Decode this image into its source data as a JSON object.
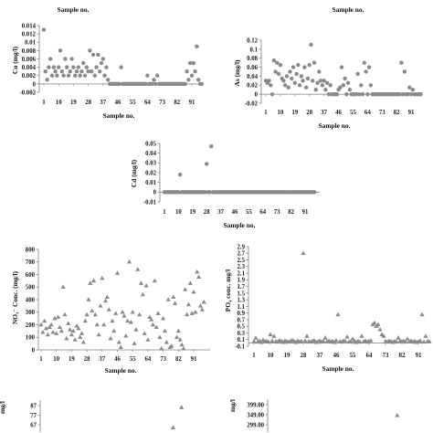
{
  "style": {
    "marker_color": "#8a8a8a",
    "axis_color": "#808080"
  },
  "top_labels": [
    "Sample no.",
    "Sample no."
  ],
  "chart_data": [
    {
      "type": "scatter",
      "marker": "circle",
      "ylabel": "Cu (mg/l)",
      "xlabel": "Sample no.",
      "x_ticks": [
        1,
        10,
        19,
        28,
        37,
        46,
        55,
        64,
        73,
        82,
        91
      ],
      "y_ticks": [
        "0.014",
        "0.012",
        "0.01",
        "0.008",
        "0.006",
        "0.004",
        "0.002",
        "0",
        "-0.002"
      ],
      "ylim": [
        -0.002,
        0.014
      ],
      "values": [
        0.013,
        0.003,
        0.001,
        0.004,
        0.006,
        0.002,
        0.004,
        0.003,
        0.002,
        0.004,
        0.008,
        0.003,
        0.002,
        0.006,
        0.004,
        0.002,
        0.003,
        0.006,
        0.004,
        0.002,
        0.003,
        0.004,
        0.002,
        0.003,
        0.005,
        0.002,
        0.004,
        0.003,
        0.008,
        0.003,
        0.007,
        0.002,
        0.004,
        0.007,
        0.003,
        0.005,
        0.006,
        0.002,
        0.004,
        0.001,
        0,
        0,
        0,
        0,
        0,
        0,
        0,
        0.004,
        0,
        0,
        0,
        0,
        0,
        0,
        0,
        0,
        0,
        0,
        0,
        0,
        0,
        0,
        0,
        0.002,
        0,
        0,
        0,
        0.001,
        0,
        0.002,
        0,
        0,
        0,
        0,
        0,
        0,
        0,
        0,
        0,
        0,
        0,
        0,
        0,
        0,
        0,
        0,
        0,
        0.003,
        0.001,
        0.005,
        0.002,
        0.005,
        0.003,
        0.009,
        0.001,
        0,
        0
      ]
    },
    {
      "type": "scatter",
      "marker": "circle",
      "ylabel": "As (mg/l)",
      "xlabel": "Sample no.",
      "x_ticks": [
        1,
        10,
        19,
        28,
        37,
        46,
        55,
        64,
        73,
        82,
        91
      ],
      "y_ticks": [
        "0.12",
        "0.1",
        "0.08",
        "0.06",
        "0.04",
        "0.02",
        "0",
        "-0.02"
      ],
      "ylim": [
        -0.02,
        0.12
      ],
      "values": [
        0.03,
        0.025,
        0.03,
        0.02,
        0,
        0.075,
        0.05,
        0.07,
        0.045,
        0.065,
        0.035,
        0.03,
        0.02,
        0.04,
        0.015,
        0.05,
        0.035,
        0.06,
        0.025,
        0.045,
        0.065,
        0.02,
        0.04,
        0.03,
        0.06,
        0.015,
        0.035,
        0.065,
        0.11,
        0.03,
        0.07,
        0.01,
        0.025,
        0.05,
        0.03,
        0.02,
        0.03,
        0.01,
        0.025,
        0,
        0.02,
        0,
        0,
        0,
        0,
        0.01,
        0.015,
        0.06,
        0.02,
        0.035,
        0,
        0.025,
        0.01,
        0,
        0,
        0,
        0,
        0.045,
        0,
        0.02,
        0,
        0.07,
        0.05,
        0,
        0.06,
        0.02,
        0,
        0,
        0,
        0,
        0,
        0,
        0,
        0,
        0,
        0,
        0,
        0,
        0,
        0,
        0,
        0,
        0,
        0,
        0.07,
        0,
        0.05,
        0,
        0,
        0.015,
        0,
        0.01,
        0,
        0,
        0,
        0,
        0
      ]
    },
    {
      "type": "scatter",
      "marker": "circle",
      "ylabel": "Cd (mg/l)",
      "xlabel": "Sample no.",
      "x_ticks": [
        1,
        10,
        19,
        28,
        37,
        46,
        55,
        64,
        73,
        82,
        91
      ],
      "y_ticks": [
        "0.05",
        "0.04",
        "0.03",
        "0.02",
        "0.01",
        "0",
        "-0.01"
      ],
      "ylim": [
        -0.01,
        0.05
      ],
      "values": [
        0,
        0,
        0,
        0,
        0,
        0,
        0,
        0,
        0,
        0,
        0.018,
        0,
        0,
        0,
        0,
        0,
        0,
        0,
        0,
        0,
        0,
        0,
        0,
        0,
        0,
        0,
        0,
        0.029,
        0,
        0,
        0.047,
        0,
        0,
        0,
        0,
        0,
        0,
        0,
        0,
        0,
        0,
        0,
        0,
        0,
        0,
        0,
        0,
        0,
        0,
        0,
        0,
        0,
        0,
        0,
        0,
        0,
        0,
        0,
        0,
        0,
        0,
        0,
        0,
        0,
        0,
        0,
        0,
        0,
        0,
        0,
        0,
        0,
        0,
        0,
        0,
        0,
        0,
        0,
        0,
        0,
        0,
        0,
        0,
        0,
        0,
        0,
        0,
        0,
        0,
        0,
        0,
        0,
        0,
        0,
        0,
        0,
        0
      ]
    },
    {
      "type": "scatter",
      "marker": "triangle",
      "ylabel": "NO₃⁻ Conc. (mg/l)",
      "xlabel": "Sample no.",
      "x_ticks": [
        1,
        10,
        19,
        28,
        37,
        46,
        55,
        64,
        73,
        82,
        91
      ],
      "y_ticks": [
        "800",
        "700",
        "600",
        "500",
        "400",
        "300",
        "200",
        "100",
        "0"
      ],
      "ylim": [
        0,
        800
      ],
      "values": [
        200,
        140,
        230,
        170,
        120,
        180,
        200,
        140,
        250,
        130,
        260,
        180,
        150,
        500,
        280,
        90,
        210,
        160,
        120,
        150,
        80,
        190,
        170,
        100,
        130,
        60,
        230,
        280,
        400,
        530,
        310,
        550,
        280,
        200,
        120,
        350,
        570,
        200,
        390,
        420,
        320,
        90,
        230,
        150,
        290,
        610,
        60,
        20,
        300,
        270,
        110,
        230,
        700,
        220,
        300,
        50,
        160,
        640,
        280,
        530,
        440,
        130,
        510,
        80,
        260,
        240,
        200,
        550,
        180,
        290,
        100,
        10,
        250,
        150,
        60,
        400,
        20,
        30,
        420,
        370,
        100,
        150,
        80,
        40,
        10,
        480,
        280,
        360,
        530,
        290,
        460,
        300,
        620,
        580,
        350,
        320,
        380
      ]
    },
    {
      "type": "scatter",
      "marker": "triangle",
      "ylabel": "PO₄ conc. mg/l",
      "xlabel": "Sample no.",
      "x_ticks": [
        1,
        10,
        19,
        28,
        37,
        46,
        55,
        64,
        73,
        82,
        91
      ],
      "y_ticks": [
        "2.9",
        "2.7",
        "2.5",
        "2.3",
        "2.1",
        "1.9",
        "1.7",
        "1.5",
        "1.3",
        "1.1",
        "0.9",
        "0.7",
        "0.5",
        "0.3",
        "0.1",
        "-0.1"
      ],
      "ylim": [
        -0.1,
        2.9
      ],
      "values": [
        0.05,
        0.15,
        0.03,
        0.06,
        0.02,
        0.08,
        0.04,
        0.05,
        0.03,
        0.25,
        0.06,
        0.2,
        0.04,
        0.03,
        0.07,
        0.05,
        0.02,
        0.06,
        0.04,
        0.03,
        0.05,
        0.08,
        0.04,
        0.02,
        0.06,
        0.03,
        0.05,
        2.7,
        0.06,
        0.2,
        0.04,
        0.03,
        0.05,
        0.07,
        0.02,
        0.04,
        0.06,
        0.03,
        0.05,
        0.15,
        0.04,
        0.06,
        0.03,
        0.05,
        0.02,
        0.07,
        0.85,
        0.04,
        0.03,
        0.06,
        0.05,
        0.18,
        0.03,
        0.04,
        0.12,
        0.06,
        0.02,
        0.05,
        0.03,
        0.2,
        0.04,
        0.06,
        0.03,
        0.05,
        0.07,
        0.55,
        0.6,
        0.5,
        0.55,
        0.4,
        0.25,
        0.2,
        0.05,
        0.03,
        0.06,
        0.04,
        0.02,
        0.05,
        0.03,
        0.15,
        0.06,
        0.04,
        0.05,
        0.03,
        0.12,
        0.04,
        0.06,
        0.03,
        0.05,
        0.02,
        0.04,
        0.06,
        0.85,
        0.03,
        0.2,
        0.05,
        0.04
      ]
    },
    {
      "type": "scatter",
      "marker": "triangle",
      "ylabel": "mg/l",
      "y_ticks": [
        "87",
        "77",
        "67"
      ],
      "points": [
        {
          "x": 78,
          "y": 64
        },
        {
          "x": 83,
          "y": 85
        }
      ]
    },
    {
      "type": "scatter",
      "marker": "triangle",
      "ylabel": "mg/l",
      "y_ticks": [
        "399.00",
        "349.00",
        "299.00"
      ],
      "points": [
        {
          "x": 77,
          "y": 345
        }
      ]
    }
  ]
}
